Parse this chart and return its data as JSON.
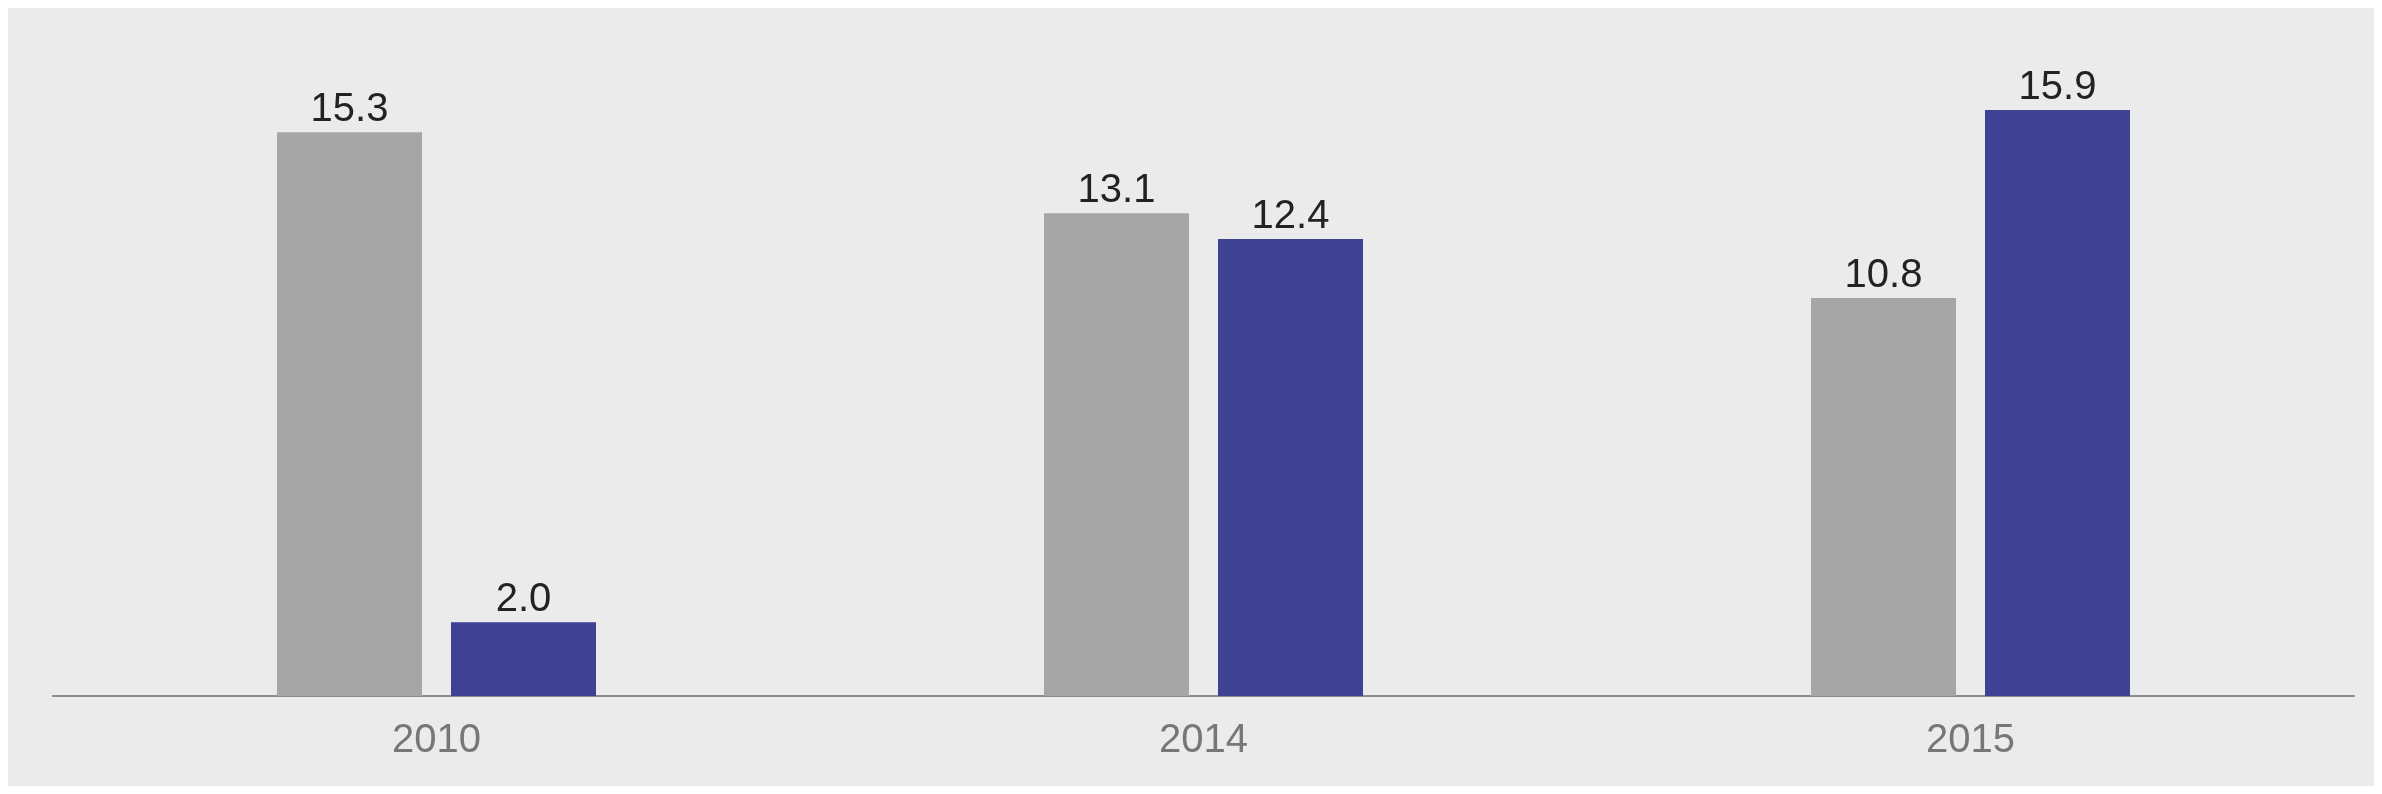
{
  "chart_data": {
    "type": "bar",
    "categories": [
      "2010",
      "2014",
      "2015"
    ],
    "series": [
      {
        "color": "#a6a6a6",
        "values": [
          15.3,
          13.1,
          10.8
        ],
        "value_labels": [
          "15.3",
          "13.1",
          "10.8"
        ]
      },
      {
        "color": "#3f4194",
        "values": [
          2.0,
          12.4,
          15.9
        ],
        "value_labels": [
          "2.0",
          "12.4",
          "15.9"
        ]
      }
    ]
  }
}
